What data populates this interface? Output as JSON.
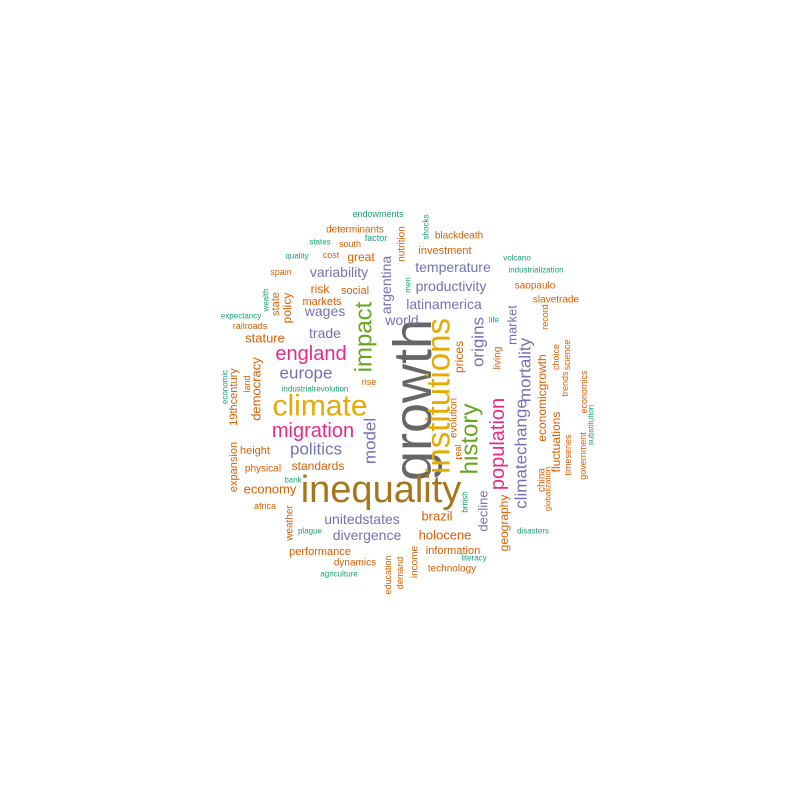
{
  "palette": {
    "teal": "#1b9e77",
    "orange": "#d95f02",
    "purple": "#7570b3",
    "magenta": "#e7298a",
    "green": "#66a61e",
    "gold": "#e6ab02",
    "brown": "#a6761d",
    "gray": "#666666"
  },
  "words": [
    {
      "text": "growth",
      "color": "gray"
    },
    {
      "text": "inequality",
      "color": "brown"
    },
    {
      "text": "institutions",
      "color": "gold"
    },
    {
      "text": "climate",
      "color": "gold"
    },
    {
      "text": "history",
      "color": "green"
    },
    {
      "text": "impact",
      "color": "green"
    },
    {
      "text": "population",
      "color": "magenta"
    },
    {
      "text": "migration",
      "color": "magenta"
    },
    {
      "text": "england",
      "color": "magenta"
    },
    {
      "text": "climatechange",
      "color": "purple"
    },
    {
      "text": "europe",
      "color": "purple"
    },
    {
      "text": "politics",
      "color": "purple"
    },
    {
      "text": "model",
      "color": "purple"
    },
    {
      "text": "origins",
      "color": "purple"
    },
    {
      "text": "mortality",
      "color": "purple"
    },
    {
      "text": "unitedstates",
      "color": "purple"
    },
    {
      "text": "divergence",
      "color": "purple"
    },
    {
      "text": "latinamerica",
      "color": "purple"
    },
    {
      "text": "temperature",
      "color": "purple"
    },
    {
      "text": "variability",
      "color": "purple"
    },
    {
      "text": "productivity",
      "color": "purple"
    },
    {
      "text": "wages",
      "color": "purple"
    },
    {
      "text": "trade",
      "color": "purple"
    },
    {
      "text": "world",
      "color": "purple"
    },
    {
      "text": "argentina",
      "color": "purple"
    },
    {
      "text": "decline",
      "color": "purple"
    },
    {
      "text": "market",
      "color": "purple"
    },
    {
      "text": "standards",
      "color": "orange"
    },
    {
      "text": "economy",
      "color": "orange"
    },
    {
      "text": "brazil",
      "color": "orange"
    },
    {
      "text": "holocene",
      "color": "orange"
    },
    {
      "text": "stature",
      "color": "orange"
    },
    {
      "text": "democracy",
      "color": "orange"
    },
    {
      "text": "geography",
      "color": "orange"
    },
    {
      "text": "prices",
      "color": "orange"
    },
    {
      "text": "economicgrowth",
      "color": "orange"
    },
    {
      "text": "fluctuations",
      "color": "orange"
    },
    {
      "text": "great",
      "color": "orange"
    },
    {
      "text": "information",
      "color": "orange"
    },
    {
      "text": "performance",
      "color": "orange"
    },
    {
      "text": "policy",
      "color": "orange"
    },
    {
      "text": "risk",
      "color": "orange"
    },
    {
      "text": "height",
      "color": "orange"
    },
    {
      "text": "19thcentury",
      "color": "orange"
    },
    {
      "text": "expansion",
      "color": "orange"
    },
    {
      "text": "social",
      "color": "orange"
    },
    {
      "text": "markets",
      "color": "orange"
    },
    {
      "text": "state",
      "color": "orange"
    },
    {
      "text": "investment",
      "color": "orange"
    },
    {
      "text": "determinants",
      "color": "orange"
    },
    {
      "text": "saopaulo",
      "color": "orange"
    },
    {
      "text": "slavetrade",
      "color": "orange"
    },
    {
      "text": "blackdeath",
      "color": "orange"
    },
    {
      "text": "nutrition",
      "color": "orange"
    },
    {
      "text": "evolution",
      "color": "orange"
    },
    {
      "text": "living",
      "color": "orange"
    },
    {
      "text": "china",
      "color": "orange"
    },
    {
      "text": "technology",
      "color": "orange"
    },
    {
      "text": "income",
      "color": "orange"
    },
    {
      "text": "dynamics",
      "color": "orange"
    },
    {
      "text": "physical",
      "color": "orange"
    },
    {
      "text": "weather",
      "color": "orange"
    },
    {
      "text": "timeseries",
      "color": "orange"
    },
    {
      "text": "government",
      "color": "orange"
    },
    {
      "text": "economics",
      "color": "orange"
    },
    {
      "text": "science",
      "color": "orange"
    },
    {
      "text": "trends",
      "color": "orange"
    },
    {
      "text": "choice",
      "color": "orange"
    },
    {
      "text": "record",
      "color": "orange"
    },
    {
      "text": "globalization",
      "color": "orange"
    },
    {
      "text": "land",
      "color": "orange"
    },
    {
      "text": "rise",
      "color": "orange"
    },
    {
      "text": "real",
      "color": "orange"
    },
    {
      "text": "south",
      "color": "orange"
    },
    {
      "text": "cost",
      "color": "orange"
    },
    {
      "text": "spain",
      "color": "orange"
    },
    {
      "text": "railroads",
      "color": "orange"
    },
    {
      "text": "africa",
      "color": "orange"
    },
    {
      "text": "education",
      "color": "orange"
    },
    {
      "text": "demand",
      "color": "orange"
    },
    {
      "text": "endowments",
      "color": "teal"
    },
    {
      "text": "shocks",
      "color": "teal"
    },
    {
      "text": "factor",
      "color": "teal"
    },
    {
      "text": "states",
      "color": "teal"
    },
    {
      "text": "quality",
      "color": "teal"
    },
    {
      "text": "volcano",
      "color": "teal"
    },
    {
      "text": "industrialization",
      "color": "teal"
    },
    {
      "text": "wealth",
      "color": "teal"
    },
    {
      "text": "expectancy",
      "color": "teal"
    },
    {
      "text": "men",
      "color": "teal"
    },
    {
      "text": "life",
      "color": "teal"
    },
    {
      "text": "industrialrevolution",
      "color": "teal"
    },
    {
      "text": "economic",
      "color": "teal"
    },
    {
      "text": "bank",
      "color": "teal"
    },
    {
      "text": "plague",
      "color": "teal"
    },
    {
      "text": "british",
      "color": "teal"
    },
    {
      "text": "substitution",
      "color": "teal"
    },
    {
      "text": "disasters",
      "color": "teal"
    },
    {
      "text": "literacy",
      "color": "teal"
    },
    {
      "text": "agriculture",
      "color": "teal"
    }
  ]
}
